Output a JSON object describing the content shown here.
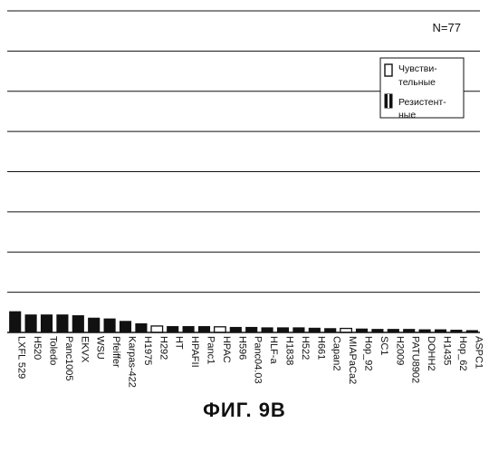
{
  "figure_caption": "ФИГ. 9B",
  "chart_data": {
    "type": "bar",
    "annotation": "N=77",
    "grid": true,
    "legend": {
      "placement": "top-right",
      "entries": [
        {
          "label_lines": [
            "Чувстви-",
            "тельные"
          ],
          "style": "hollow"
        },
        {
          "label_lines": [
            "Резистент-",
            "ные"
          ],
          "style": "filled"
        }
      ]
    },
    "ylim": [
      0,
      8
    ],
    "categories": [
      "LXFL 529",
      "H520",
      "Toledo",
      "Panc1005",
      "EKVX",
      "WSU",
      "Pfeiffer",
      "Karpas-422",
      "H1975",
      "H292",
      "HT",
      "HPAFII",
      "Panc1",
      "HPAC",
      "H596",
      "Panc04.03",
      "HLF-a",
      "H1838",
      "H522",
      "H661",
      "Capan2",
      "MIAPaCa2",
      "Hop_92",
      "SC1",
      "H2009",
      "PATU8902",
      "DOHH2",
      "H1435",
      "Hop_62",
      "ASPC1"
    ],
    "values": [
      0.52,
      0.44,
      0.44,
      0.44,
      0.42,
      0.36,
      0.34,
      0.28,
      0.22,
      0.16,
      0.15,
      0.15,
      0.15,
      0.14,
      0.13,
      0.13,
      0.12,
      0.12,
      0.12,
      0.11,
      0.1,
      0.1,
      0.09,
      0.08,
      0.08,
      0.08,
      0.07,
      0.07,
      0.06,
      0.05
    ],
    "group": [
      "resistant",
      "resistant",
      "resistant",
      "resistant",
      "resistant",
      "resistant",
      "resistant",
      "resistant",
      "resistant",
      "sensitive",
      "resistant",
      "resistant",
      "resistant",
      "sensitive",
      "resistant",
      "resistant",
      "resistant",
      "resistant",
      "resistant",
      "resistant",
      "resistant",
      "sensitive",
      "resistant",
      "resistant",
      "resistant",
      "resistant",
      "resistant",
      "resistant",
      "resistant",
      "resistant"
    ]
  }
}
